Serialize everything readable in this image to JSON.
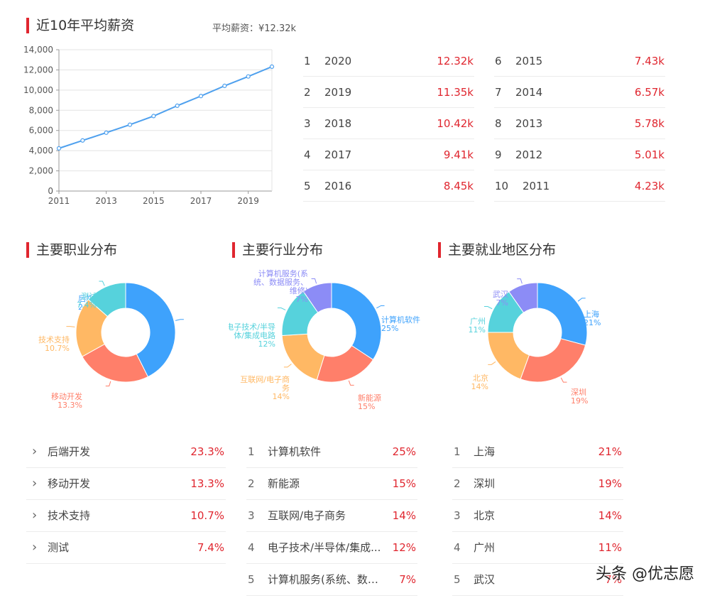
{
  "salary": {
    "title": "近10年平均薪资",
    "avg_note": "平均薪资：¥12.32k",
    "ranks": [
      {
        "rank": "1",
        "year": "2020",
        "value": "12.32k"
      },
      {
        "rank": "2",
        "year": "2019",
        "value": "11.35k"
      },
      {
        "rank": "3",
        "year": "2018",
        "value": "10.42k"
      },
      {
        "rank": "4",
        "year": "2017",
        "value": "9.41k"
      },
      {
        "rank": "5",
        "year": "2016",
        "value": "8.45k"
      },
      {
        "rank": "6",
        "year": "2015",
        "value": "7.43k"
      },
      {
        "rank": "7",
        "year": "2014",
        "value": "6.57k"
      },
      {
        "rank": "8",
        "year": "2013",
        "value": "5.78k"
      },
      {
        "rank": "9",
        "year": "2012",
        "value": "5.01k"
      },
      {
        "rank": "10",
        "year": "2011",
        "value": "4.23k"
      }
    ]
  },
  "positions": {
    "title": "主要职业分布",
    "items": [
      {
        "marker": "›",
        "name": "后端开发",
        "pct": "23.3%"
      },
      {
        "marker": "›",
        "name": "移动开发",
        "pct": "13.3%"
      },
      {
        "marker": "›",
        "name": "技术支持",
        "pct": "10.7%"
      },
      {
        "marker": "›",
        "name": "测试",
        "pct": "7.4%"
      }
    ]
  },
  "industries": {
    "title": "主要行业分布",
    "items": [
      {
        "marker": "1",
        "name": "计算机软件",
        "pct": "25%"
      },
      {
        "marker": "2",
        "name": "新能源",
        "pct": "15%"
      },
      {
        "marker": "3",
        "name": "互联网/电子商务",
        "pct": "14%"
      },
      {
        "marker": "4",
        "name": "电子技术/半导体/集成...",
        "pct": "12%"
      },
      {
        "marker": "5",
        "name": "计算机服务(系统、数据...",
        "pct": "7%"
      }
    ]
  },
  "regions": {
    "title": "主要就业地区分布",
    "items": [
      {
        "marker": "1",
        "name": "上海",
        "pct": "21%"
      },
      {
        "marker": "2",
        "name": "深圳",
        "pct": "19%"
      },
      {
        "marker": "3",
        "name": "北京",
        "pct": "14%"
      },
      {
        "marker": "4",
        "name": "广州",
        "pct": "11%"
      },
      {
        "marker": "5",
        "name": "武汉",
        "pct": "7%"
      }
    ]
  },
  "watermark": "头条 @优志愿",
  "chart_data": [
    {
      "type": "line",
      "title": "",
      "x": [
        2011,
        2012,
        2013,
        2014,
        2015,
        2016,
        2017,
        2018,
        2019,
        2020
      ],
      "x_tick_labels": [
        "2011",
        "2013",
        "2015",
        "2017",
        "2019"
      ],
      "y_tick_labels": [
        "0",
        "2,000",
        "4,000",
        "6,000",
        "8,000",
        "10,000",
        "12,000",
        "14,000"
      ],
      "series": [
        {
          "values": [
            4230,
            5010,
            5780,
            6570,
            7430,
            8450,
            9410,
            10420,
            11350,
            12320
          ]
        }
      ],
      "xlim": [
        2011,
        2020
      ],
      "ylim": [
        0,
        14000
      ],
      "grid": true,
      "color": "#4ea0ee"
    },
    {
      "type": "pie",
      "variant": "donut",
      "slices": [
        {
          "label": "后端开发",
          "value": 23.3,
          "value_label": "23.3%",
          "color": "#3ea2fc"
        },
        {
          "label": "移动开发",
          "value": 13.3,
          "value_label": "13.3%",
          "color": "#ff7f6a"
        },
        {
          "label": "技术支持",
          "value": 10.7,
          "value_label": "10.7%",
          "color": "#ffb864"
        },
        {
          "label": "测试",
          "value": 7.4,
          "value_label": "7.4%",
          "color": "#56d2dc"
        }
      ]
    },
    {
      "type": "pie",
      "variant": "donut",
      "slices": [
        {
          "label": "计算机软件",
          "value": 25,
          "value_label": "25%",
          "color": "#3ea2fc"
        },
        {
          "label": "新能源",
          "value": 15,
          "value_label": "15%",
          "color": "#ff7f6a"
        },
        {
          "label": "互联网/电子商务",
          "value": 14,
          "value_label": "14%",
          "color": "#ffb864"
        },
        {
          "label": "电子技术/半导体/集成电路",
          "value": 12,
          "value_label": "12%",
          "color": "#56d2dc"
        },
        {
          "label": "计算机服务(系统、数据服务、维修)",
          "value": 7,
          "value_label": "7%",
          "color": "#8c8cf6"
        }
      ]
    },
    {
      "type": "pie",
      "variant": "donut",
      "slices": [
        {
          "label": "上海",
          "value": 21,
          "value_label": "21%",
          "color": "#3ea2fc"
        },
        {
          "label": "深圳",
          "value": 19,
          "value_label": "19%",
          "color": "#ff7f6a"
        },
        {
          "label": "北京",
          "value": 14,
          "value_label": "14%",
          "color": "#ffb864"
        },
        {
          "label": "广州",
          "value": 11,
          "value_label": "11%",
          "color": "#56d2dc"
        },
        {
          "label": "武汉",
          "value": 7,
          "value_label": "7%",
          "color": "#8c8cf6"
        }
      ]
    }
  ]
}
